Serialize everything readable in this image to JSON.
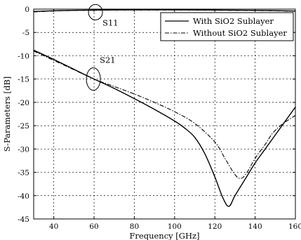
{
  "chart_data": {
    "type": "line",
    "title": "",
    "xlabel": "Frequency [GHz]",
    "ylabel": "S-Parameters [dB]",
    "xlim": [
      30,
      160
    ],
    "ylim": [
      -45,
      0
    ],
    "xticks": [
      40,
      60,
      80,
      100,
      120,
      140,
      160
    ],
    "yticks": [
      0,
      -5,
      -10,
      -15,
      -20,
      -25,
      -30,
      -35,
      -40,
      -45
    ],
    "grid": true,
    "legend_position": "top-right",
    "series": [
      {
        "name": "With SiO2 Sublayer",
        "style": "solid",
        "group": "S21",
        "points": [
          [
            30,
            -8.8
          ],
          [
            40,
            -10.8
          ],
          [
            50,
            -12.9
          ],
          [
            60,
            -15.0
          ],
          [
            70,
            -17.0
          ],
          [
            80,
            -19.2
          ],
          [
            90,
            -21.5
          ],
          [
            100,
            -24.0
          ],
          [
            105,
            -25.5
          ],
          [
            110,
            -27.5
          ],
          [
            115,
            -31.0
          ],
          [
            120,
            -36.0
          ],
          [
            124,
            -40.5
          ],
          [
            127,
            -42.3
          ],
          [
            130,
            -40.0
          ],
          [
            135,
            -36.5
          ],
          [
            140,
            -33.0
          ],
          [
            145,
            -30.0
          ],
          [
            150,
            -27.0
          ],
          [
            155,
            -24.0
          ],
          [
            160,
            -21.0
          ]
        ]
      },
      {
        "name": "Without SiO2 Sublayer",
        "style": "dashdot",
        "group": "S21",
        "points": [
          [
            30,
            -9.0
          ],
          [
            40,
            -11.0
          ],
          [
            50,
            -13.0
          ],
          [
            60,
            -15.0
          ],
          [
            70,
            -16.6
          ],
          [
            80,
            -18.2
          ],
          [
            90,
            -20.0
          ],
          [
            100,
            -22.0
          ],
          [
            110,
            -24.5
          ],
          [
            120,
            -28.5
          ],
          [
            125,
            -32.0
          ],
          [
            130,
            -35.5
          ],
          [
            133,
            -36.3
          ],
          [
            136,
            -35.0
          ],
          [
            140,
            -32.0
          ],
          [
            145,
            -29.0
          ],
          [
            148,
            -27.0
          ],
          [
            150,
            -26.0
          ],
          [
            152,
            -25.2
          ],
          [
            155,
            -24.2
          ],
          [
            160,
            -22.8
          ]
        ]
      },
      {
        "name": "With SiO2 Sublayer",
        "style": "solid",
        "group": "S11",
        "points": [
          [
            30,
            -0.5
          ],
          [
            40,
            -0.35
          ],
          [
            50,
            -0.25
          ],
          [
            60,
            -0.2
          ],
          [
            80,
            -0.15
          ],
          [
            100,
            -0.15
          ],
          [
            120,
            -0.2
          ],
          [
            140,
            -0.25
          ],
          [
            160,
            -0.4
          ]
        ]
      },
      {
        "name": "Without SiO2 Sublayer",
        "style": "dashdot",
        "group": "S11",
        "points": [
          [
            30,
            -0.6
          ],
          [
            40,
            -0.4
          ],
          [
            50,
            -0.3
          ],
          [
            60,
            -0.25
          ],
          [
            80,
            -0.2
          ],
          [
            100,
            -0.2
          ],
          [
            120,
            -0.25
          ],
          [
            140,
            -0.3
          ],
          [
            160,
            -0.45
          ]
        ]
      }
    ],
    "annotations": [
      {
        "text": "S11",
        "x": 60,
        "y": -0.2,
        "circle": true
      },
      {
        "text": "S21",
        "x": 60,
        "y": -15.0,
        "circle": true
      }
    ]
  }
}
